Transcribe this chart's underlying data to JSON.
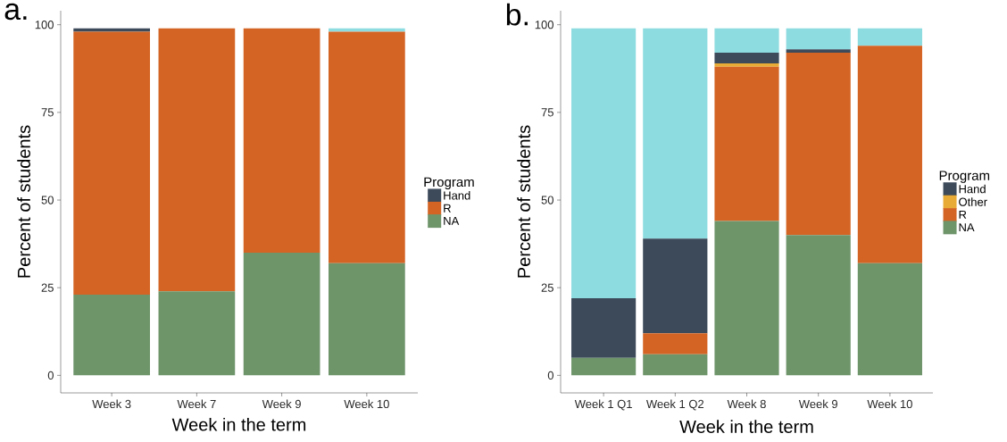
{
  "chart_data": [
    {
      "type": "bar",
      "stacked": true,
      "annotations": [
        "a."
      ],
      "xlabel": "Week in the term",
      "ylabel": "Percent of students",
      "legend_title": "Program",
      "legend": "right",
      "categories": [
        "Week 3",
        "Week 7",
        "Week 9",
        "Week 10"
      ],
      "ylim": [
        -5,
        104
      ],
      "yticks": [
        0,
        25,
        50,
        75,
        100
      ],
      "series": [
        {
          "name": "NA",
          "color": "#6e946a",
          "values": [
            23,
            24,
            35,
            32
          ]
        },
        {
          "name": "R",
          "color": "#d46424",
          "values": [
            75,
            75,
            64,
            66
          ]
        },
        {
          "name": "Hand",
          "color": "#3c4a5a",
          "values": [
            1,
            0,
            0,
            0
          ]
        },
        {
          "color": "#8ddce0",
          "values": [
            0,
            0,
            0,
            1
          ]
        }
      ]
    },
    {
      "type": "bar",
      "stacked": true,
      "annotations": [
        "b."
      ],
      "xlabel": "Week in the term",
      "ylabel": "Percent of students",
      "legend_title": "Program",
      "legend": "right",
      "categories": [
        "Week 1 Q1",
        "Week 1 Q2",
        "Week 8",
        "Week 9",
        "Week 10"
      ],
      "ylim": [
        -5,
        104
      ],
      "yticks": [
        0,
        25,
        50,
        75,
        100
      ],
      "series": [
        {
          "name": "NA",
          "color": "#6e946a",
          "values": [
            5,
            6,
            44,
            40,
            32
          ]
        },
        {
          "name": "R",
          "color": "#d46424",
          "values": [
            0,
            6,
            44,
            52,
            62
          ]
        },
        {
          "name": "Other",
          "color": "#e8ab35",
          "values": [
            0,
            0,
            1,
            0,
            0
          ]
        },
        {
          "name": "Hand",
          "color": "#3c4a5a",
          "values": [
            17,
            27,
            3,
            1,
            0
          ]
        },
        {
          "color": "#8ddce0",
          "values": [
            77,
            60,
            7,
            6,
            5
          ]
        }
      ]
    }
  ]
}
